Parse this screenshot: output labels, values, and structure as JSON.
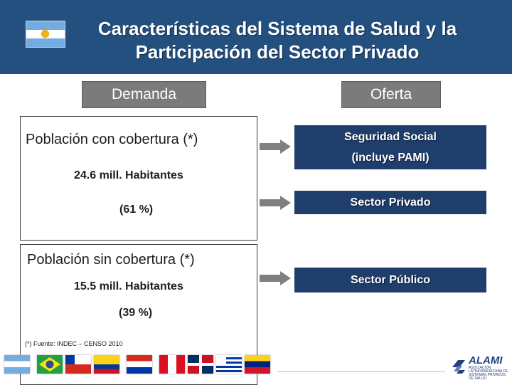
{
  "header": {
    "title_line1": "Características del Sistema de Salud y la",
    "title_line2": "Participación del Sector Privado",
    "flag": "argentina-flag-icon",
    "background": "#24507f"
  },
  "tabs": {
    "demanda": "Demanda",
    "oferta": "Oferta"
  },
  "demand": {
    "covered": {
      "label": "Población con cobertura (*)",
      "people": "24.6 mill. Habitantes",
      "percent": "(61 %)"
    },
    "uncovered": {
      "label": "Población sin cobertura (*)",
      "people": "15.5 mill. Habitantes",
      "percent": "(39 %)"
    },
    "source": "(*) Fuente: INDEC – CENSO 2010"
  },
  "supply": {
    "social_security_line1": "Seguridad Social",
    "social_security_line2": "(incluye PAMI)",
    "private": "Sector Privado",
    "public": "Sector Público",
    "box_color": "#1f3e6b"
  },
  "footer": {
    "flags": [
      "argentina-flag-icon",
      "brazil-flag-icon",
      "chile-flag-icon",
      "colombia-flag-icon",
      "paraguay-flag-icon",
      "peru-flag-icon",
      "dominican-republic-flag-icon",
      "uruguay-flag-icon",
      "venezuela-flag-icon"
    ],
    "logo_name": "ALAMI",
    "logo_subtext": "ASOCIACIÓN LATINOAMERICANA DE SISTEMAS PRIVADOS DE SALUD"
  }
}
